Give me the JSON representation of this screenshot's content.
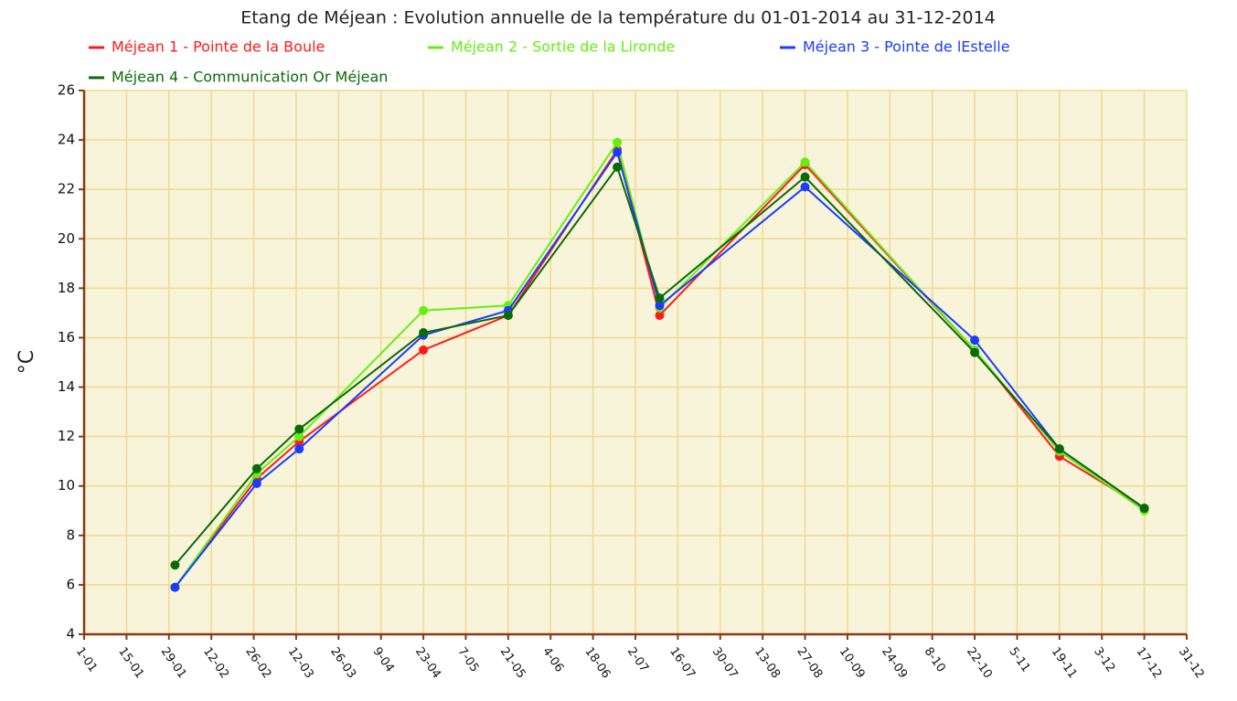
{
  "chart_data": {
    "type": "line",
    "title": "Etang de Méjean : Evolution annuelle de la température du 01-01-2014 au 31-12-2014",
    "y_label": "°C",
    "x": [
      30,
      57,
      71,
      112,
      140,
      176,
      190,
      238,
      294,
      322,
      350
    ],
    "xlim": [
      0,
      364
    ],
    "xticks": [
      {
        "value": 0,
        "label": "1-01"
      },
      {
        "value": 14,
        "label": "15-01"
      },
      {
        "value": 28,
        "label": "29-01"
      },
      {
        "value": 42,
        "label": "12-02"
      },
      {
        "value": 56,
        "label": "26-02"
      },
      {
        "value": 70,
        "label": "12-03"
      },
      {
        "value": 84,
        "label": "26-03"
      },
      {
        "value": 98,
        "label": "9-04"
      },
      {
        "value": 112,
        "label": "23-04"
      },
      {
        "value": 126,
        "label": "7-05"
      },
      {
        "value": 140,
        "label": "21-05"
      },
      {
        "value": 154,
        "label": "4-06"
      },
      {
        "value": 168,
        "label": "18-06"
      },
      {
        "value": 182,
        "label": "2-07"
      },
      {
        "value": 196,
        "label": "16-07"
      },
      {
        "value": 210,
        "label": "30-07"
      },
      {
        "value": 224,
        "label": "13-08"
      },
      {
        "value": 238,
        "label": "27-08"
      },
      {
        "value": 252,
        "label": "10-09"
      },
      {
        "value": 266,
        "label": "24-09"
      },
      {
        "value": 280,
        "label": "8-10"
      },
      {
        "value": 294,
        "label": "22-10"
      },
      {
        "value": 308,
        "label": "5-11"
      },
      {
        "value": 322,
        "label": "19-11"
      },
      {
        "value": 336,
        "label": "3-12"
      },
      {
        "value": 350,
        "label": "17-12"
      },
      {
        "value": 364,
        "label": "31-12"
      }
    ],
    "ylim": [
      4,
      26
    ],
    "yticks": [
      4,
      6,
      8,
      10,
      12,
      14,
      16,
      18,
      20,
      22,
      24,
      26
    ],
    "grid": true,
    "series": [
      {
        "name": "Méjean 1 - Pointe de la Boule",
        "color": "#ff1a1a",
        "values": [
          5.9,
          10.3,
          11.8,
          15.5,
          16.9,
          23.6,
          16.9,
          23.0,
          15.5,
          11.2,
          9.1
        ]
      },
      {
        "name": "Méjean 2 - Sortie de la Lironde",
        "color": "#66ee11",
        "values": [
          5.9,
          10.5,
          12.0,
          17.1,
          17.3,
          23.9,
          17.2,
          23.1,
          15.5,
          11.4,
          9.0
        ]
      },
      {
        "name": "Méjean 3 - Pointe de lEstelle",
        "color": "#1a3cff",
        "values": [
          5.9,
          10.1,
          11.5,
          16.1,
          17.1,
          23.5,
          17.3,
          22.1,
          15.9,
          11.5,
          9.1
        ]
      },
      {
        "name": "Méjean 4 - Communication Or Méjean",
        "color": "#0a6a0a",
        "values": [
          6.8,
          10.7,
          12.3,
          16.2,
          16.9,
          22.9,
          17.6,
          22.5,
          15.4,
          11.5,
          9.1
        ]
      }
    ]
  }
}
